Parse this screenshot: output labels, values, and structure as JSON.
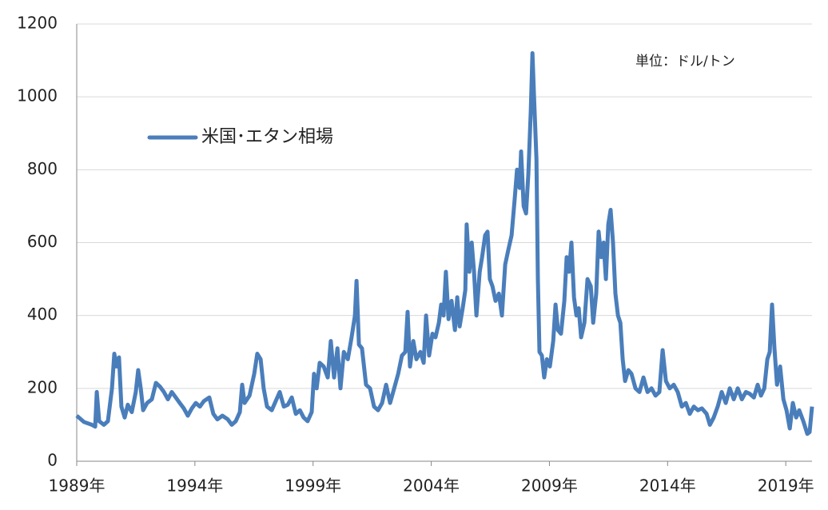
{
  "chart_data": {
    "type": "line",
    "annotations": [
      "単位：ドル/トン"
    ],
    "x": [
      1989.0,
      1989.3,
      1989.64,
      1989.78,
      1989.85,
      1989.95,
      1990.15,
      1990.32,
      1990.49,
      1990.59,
      1990.69,
      1990.79,
      1990.89,
      1991.03,
      1991.16,
      1991.33,
      1991.5,
      1991.6,
      1991.71,
      1991.81,
      1991.98,
      1992.18,
      1992.35,
      1992.52,
      1992.69,
      1992.86,
      1993.02,
      1993.19,
      1993.36,
      1993.53,
      1993.7,
      1993.87,
      1994.04,
      1994.21,
      1994.38,
      1994.61,
      1994.78,
      1994.95,
      1995.16,
      1995.39,
      1995.56,
      1995.73,
      1995.9,
      1996.0,
      1996.1,
      1996.31,
      1996.51,
      1996.64,
      1996.78,
      1996.91,
      1997.05,
      1997.25,
      1997.42,
      1997.59,
      1997.76,
      1997.93,
      1998.1,
      1998.27,
      1998.44,
      1998.6,
      1998.77,
      1998.94,
      1999.04,
      1999.15,
      1999.28,
      1999.45,
      1999.62,
      1999.75,
      1999.89,
      2000.03,
      2000.16,
      2000.3,
      2000.47,
      2000.63,
      2000.77,
      2000.84,
      2000.94,
      2001.07,
      2001.24,
      2001.41,
      2001.58,
      2001.75,
      2001.92,
      2002.09,
      2002.26,
      2002.43,
      2002.6,
      2002.76,
      2002.9,
      2003.0,
      2003.1,
      2003.24,
      2003.37,
      2003.54,
      2003.68,
      2003.78,
      2003.91,
      2004.05,
      2004.18,
      2004.32,
      2004.42,
      2004.52,
      2004.62,
      2004.73,
      2004.86,
      2005.0,
      2005.1,
      2005.2,
      2005.33,
      2005.44,
      2005.5,
      2005.61,
      2005.71,
      2005.81,
      2005.91,
      2006.05,
      2006.15,
      2006.28,
      2006.38,
      2006.48,
      2006.59,
      2006.72,
      2006.86,
      2006.99,
      2007.13,
      2007.26,
      2007.4,
      2007.53,
      2007.63,
      2007.74,
      2007.8,
      2007.91,
      2008.01,
      2008.11,
      2008.21,
      2008.28,
      2008.35,
      2008.45,
      2008.51,
      2008.58,
      2008.68,
      2008.78,
      2008.89,
      2009.02,
      2009.16,
      2009.26,
      2009.36,
      2009.49,
      2009.63,
      2009.73,
      2009.83,
      2009.93,
      2010.04,
      2010.14,
      2010.24,
      2010.34,
      2010.48,
      2010.61,
      2010.75,
      2010.85,
      2010.98,
      2011.08,
      2011.19,
      2011.29,
      2011.39,
      2011.49,
      2011.59,
      2011.69,
      2011.79,
      2011.9,
      2012.0,
      2012.1,
      2012.2,
      2012.34,
      2012.47,
      2012.64,
      2012.81,
      2012.98,
      2013.15,
      2013.32,
      2013.49,
      2013.65,
      2013.79,
      2013.93,
      2014.09,
      2014.26,
      2014.43,
      2014.6,
      2014.77,
      2014.94,
      2015.11,
      2015.28,
      2015.45,
      2015.65,
      2015.79,
      2015.95,
      2016.12,
      2016.29,
      2016.46,
      2016.63,
      2016.8,
      2016.97,
      2017.14,
      2017.31,
      2017.48,
      2017.65,
      2017.81,
      2017.95,
      2018.09,
      2018.22,
      2018.32,
      2018.42,
      2018.52,
      2018.63,
      2018.76,
      2018.9,
      2019.03,
      2019.17,
      2019.3,
      2019.44,
      2019.57,
      2019.74,
      2019.91,
      2020.01,
      2020.11
    ],
    "series": [
      {
        "name": "米国･エタン相場",
        "color": "#4a7ebb",
        "values": [
          125,
          108,
          100,
          95,
          190,
          110,
          100,
          110,
          200,
          295,
          260,
          285,
          150,
          120,
          155,
          135,
          190,
          250,
          200,
          140,
          160,
          170,
          215,
          205,
          190,
          170,
          190,
          175,
          160,
          145,
          125,
          145,
          160,
          150,
          165,
          175,
          130,
          115,
          125,
          115,
          100,
          110,
          135,
          210,
          160,
          180,
          240,
          295,
          280,
          200,
          150,
          140,
          165,
          190,
          150,
          155,
          175,
          130,
          140,
          120,
          110,
          135,
          240,
          200,
          270,
          260,
          230,
          330,
          230,
          310,
          200,
          300,
          280,
          340,
          400,
          495,
          320,
          310,
          210,
          200,
          150,
          140,
          160,
          210,
          160,
          200,
          240,
          290,
          300,
          410,
          260,
          330,
          280,
          300,
          270,
          400,
          290,
          350,
          340,
          380,
          430,
          400,
          520,
          390,
          440,
          360,
          450,
          370,
          420,
          470,
          650,
          520,
          600,
          520,
          400,
          520,
          560,
          620,
          630,
          500,
          480,
          440,
          460,
          400,
          540,
          580,
          620,
          720,
          800,
          750,
          850,
          700,
          680,
          790,
          960,
          1120,
          1000,
          830,
          500,
          300,
          290,
          230,
          280,
          260,
          330,
          430,
          360,
          350,
          440,
          560,
          520,
          600,
          450,
          400,
          420,
          340,
          380,
          500,
          480,
          380,
          460,
          630,
          560,
          600,
          500,
          650,
          690,
          600,
          460,
          400,
          380,
          280,
          220,
          250,
          240,
          200,
          190,
          230,
          190,
          200,
          180,
          190,
          305,
          220,
          200,
          210,
          190,
          150,
          160,
          130,
          150,
          140,
          145,
          130,
          100,
          120,
          150,
          190,
          160,
          200,
          170,
          200,
          170,
          190,
          185,
          175,
          210,
          180,
          200,
          280,
          300,
          430,
          310,
          210,
          260,
          170,
          140,
          90,
          160,
          120,
          140,
          110,
          75,
          80,
          150
        ]
      }
    ],
    "xlim": [
      1989,
      2020.11
    ],
    "xticks": [
      {
        "value": 1989,
        "label": "1989年"
      },
      {
        "value": 1994,
        "label": "1994年"
      },
      {
        "value": 1999,
        "label": "1999年"
      },
      {
        "value": 2004,
        "label": "2004年"
      },
      {
        "value": 2009,
        "label": "2009年"
      },
      {
        "value": 2014,
        "label": "2014年"
      },
      {
        "value": 2019,
        "label": "2019年"
      }
    ],
    "ylim": [
      0,
      1200
    ],
    "yticks": [
      0,
      200,
      400,
      600,
      800,
      1000,
      1200
    ],
    "grid": true,
    "legend": "upper left"
  }
}
